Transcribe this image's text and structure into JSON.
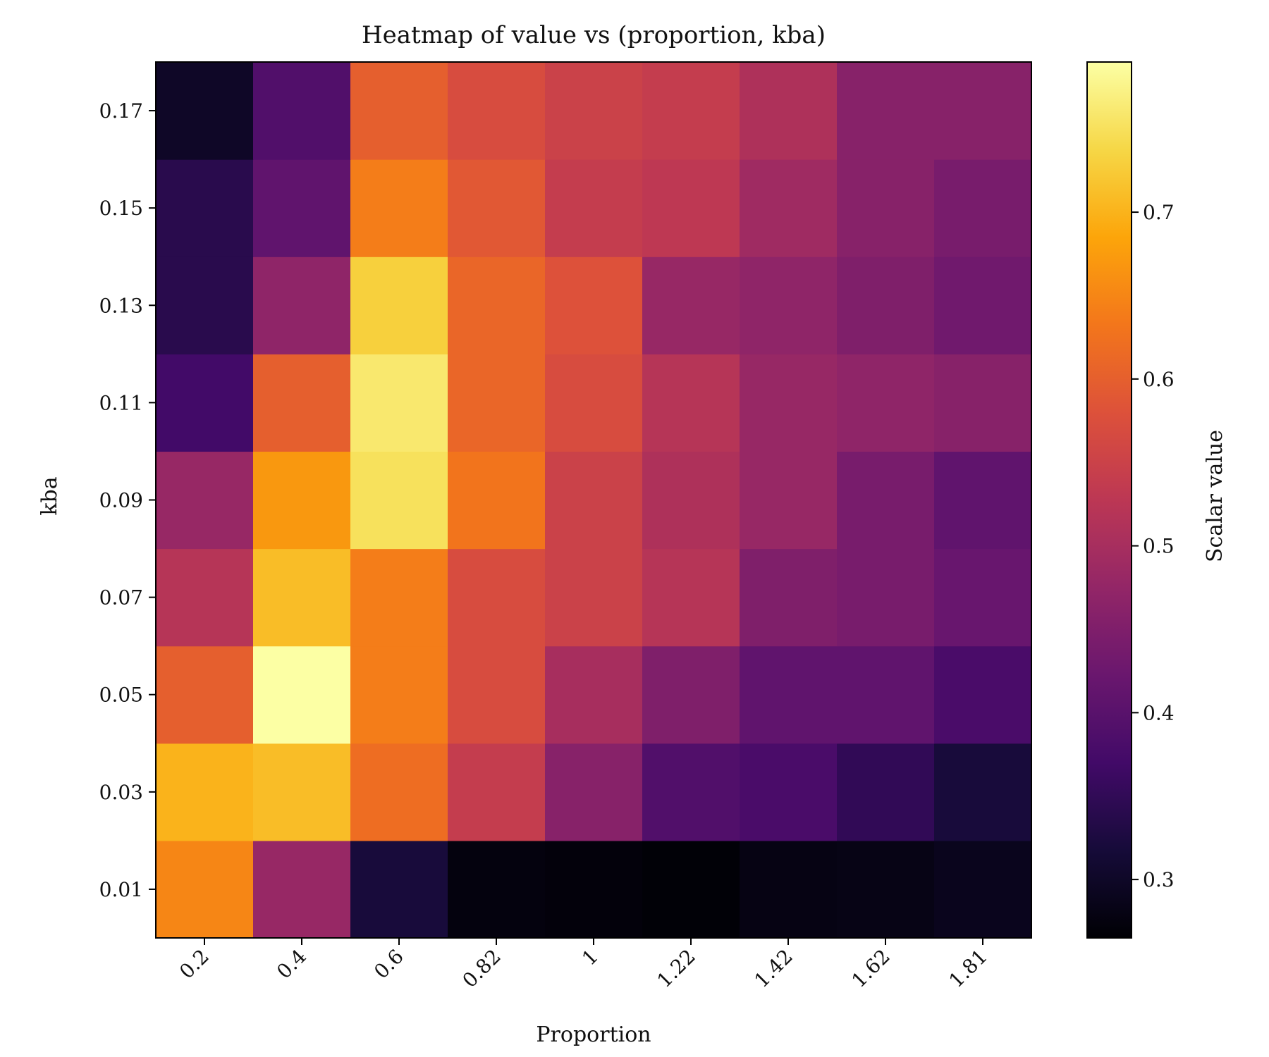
{
  "chart_data": {
    "type": "heatmap",
    "title": "Heatmap of value vs (proportion, kba)",
    "xlabel": "Proportion",
    "ylabel": "kba",
    "x_categories": [
      "0.2",
      "0.4",
      "0.6",
      "0.82",
      "1",
      "1.22",
      "1.42",
      "1.62",
      "1.81"
    ],
    "y_categories": [
      "0.01",
      "0.03",
      "0.05",
      "0.07",
      "0.09",
      "0.11",
      "0.13",
      "0.15",
      "0.17"
    ],
    "colormap": "inferno",
    "colorbar": {
      "label": "Scalar value",
      "range": [
        0.265,
        0.79
      ],
      "ticks": [
        "0.3",
        "0.4",
        "0.5",
        "0.6",
        "0.7"
      ]
    },
    "values": [
      [
        0.65,
        0.48,
        0.32,
        0.275,
        0.272,
        0.268,
        0.28,
        0.282,
        0.29
      ],
      [
        0.7,
        0.71,
        0.62,
        0.54,
        0.46,
        0.39,
        0.38,
        0.35,
        0.32
      ],
      [
        0.6,
        0.79,
        0.64,
        0.57,
        0.5,
        0.45,
        0.41,
        0.41,
        0.38
      ],
      [
        0.52,
        0.71,
        0.64,
        0.57,
        0.55,
        0.52,
        0.45,
        0.44,
        0.42
      ],
      [
        0.48,
        0.67,
        0.75,
        0.63,
        0.55,
        0.51,
        0.48,
        0.44,
        0.41
      ],
      [
        0.37,
        0.6,
        0.76,
        0.61,
        0.57,
        0.52,
        0.48,
        0.47,
        0.46
      ],
      [
        0.34,
        0.47,
        0.73,
        0.61,
        0.58,
        0.48,
        0.47,
        0.45,
        0.43
      ],
      [
        0.34,
        0.41,
        0.64,
        0.59,
        0.54,
        0.53,
        0.49,
        0.46,
        0.44
      ],
      [
        0.3,
        0.39,
        0.6,
        0.57,
        0.55,
        0.54,
        0.51,
        0.46,
        0.46
      ]
    ]
  }
}
